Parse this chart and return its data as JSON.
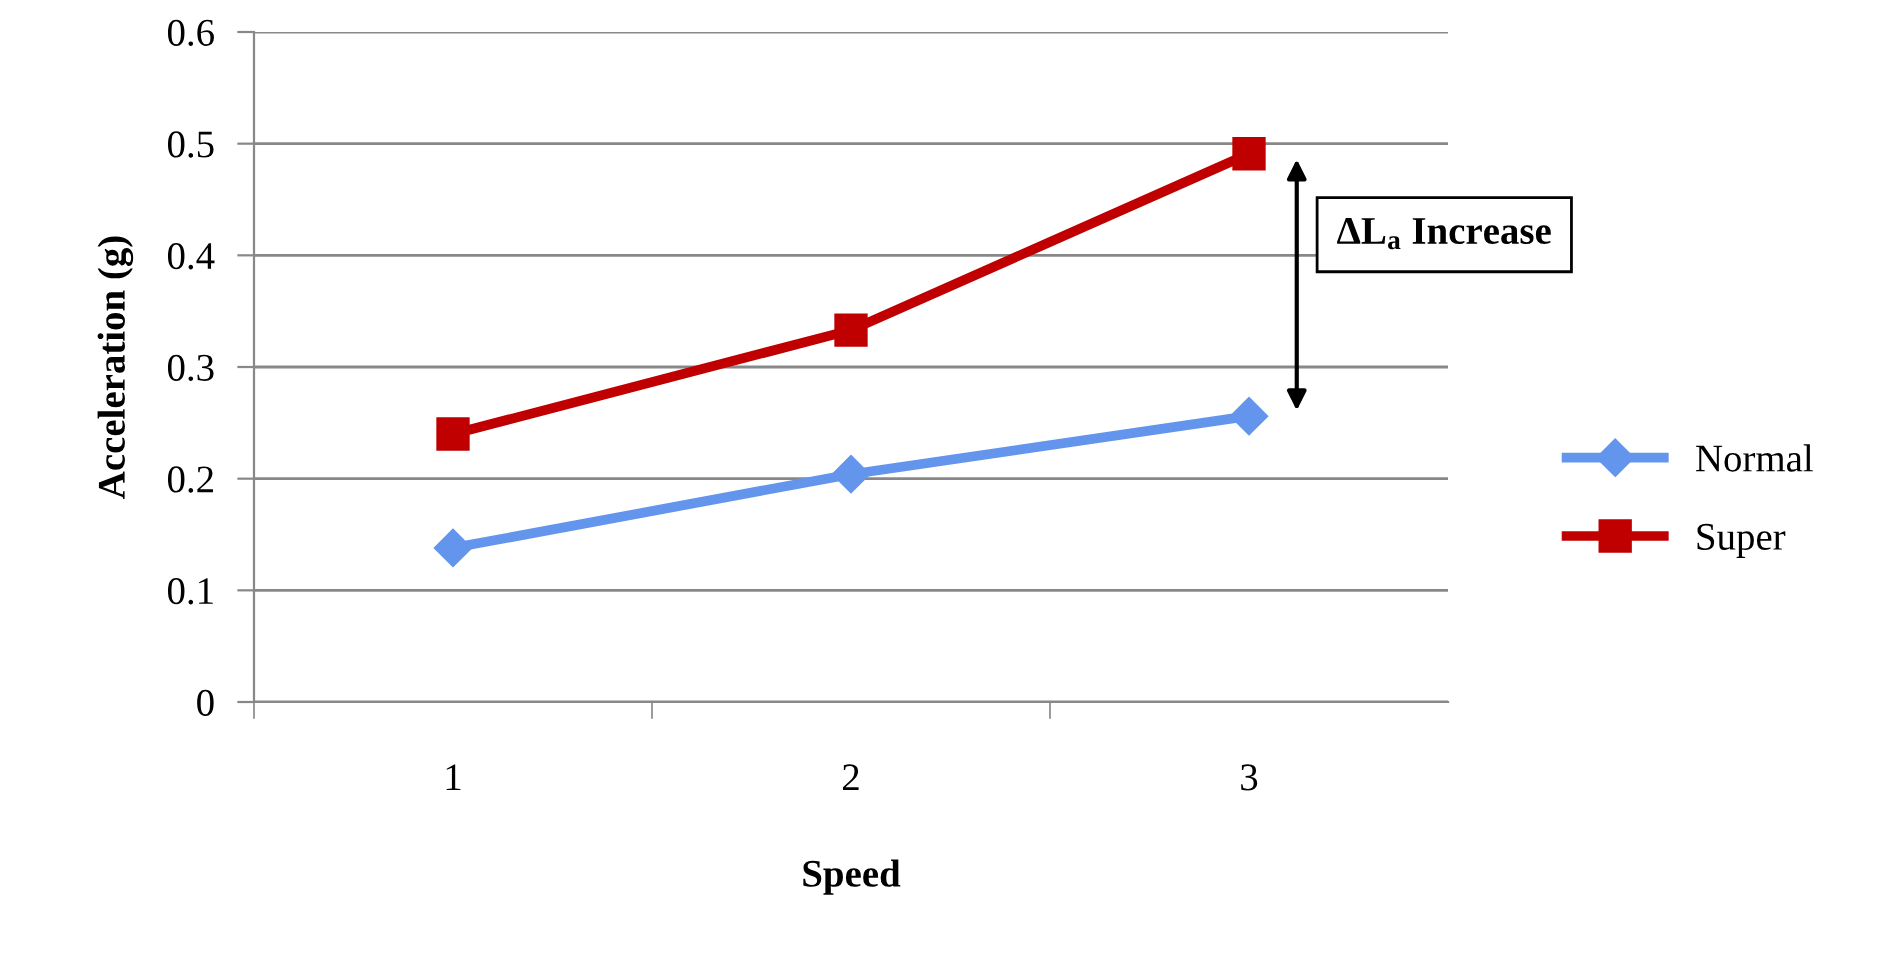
{
  "chart_data": {
    "type": "line",
    "xlabel": "Speed",
    "ylabel": "Acceleration (g)",
    "categories": [
      "1",
      "2",
      "3"
    ],
    "series": [
      {
        "name": "Normal",
        "color": "#6495ed",
        "marker": "diamond",
        "values": [
          0.138,
          0.204,
          0.256
        ]
      },
      {
        "name": "Super",
        "color": "#c00000",
        "marker": "square",
        "values": [
          0.24,
          0.333,
          0.491
        ]
      }
    ],
    "ylim": [
      0,
      0.6
    ],
    "yticks": [
      {
        "value": 0,
        "label": "0"
      },
      0.1,
      0.2,
      0.3,
      0.4,
      0.5,
      0.6
    ],
    "grid": "y",
    "legend": "right",
    "line_style": "solid",
    "annotations": [
      "ΔL$_{a}$ Increase"
    ]
  }
}
